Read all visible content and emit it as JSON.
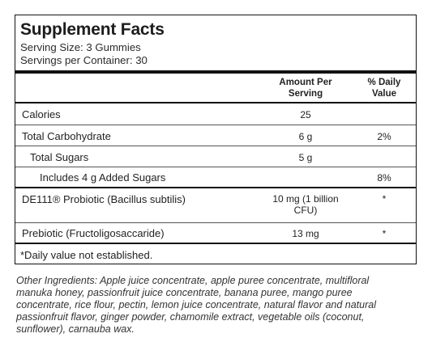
{
  "title": "Supplement Facts",
  "serving_size": "Serving Size: 3 Gummies",
  "servings_per_container": "Servings per Container: 30",
  "header": {
    "amount_line1": "Amount Per",
    "amount_line2": "Serving",
    "dv_line1": "% Daily",
    "dv_line2": "Value"
  },
  "rows": [
    {
      "label": "Calories",
      "amount": "25",
      "dv": ""
    },
    {
      "label": "Total Carbohydrate",
      "amount": "6 g",
      "dv": "2%"
    },
    {
      "label": "Total Sugars",
      "amount": "5 g",
      "dv": ""
    },
    {
      "label": "Includes 4 g Added Sugars",
      "amount": "",
      "dv": "8%"
    },
    {
      "label": "DE111® Probiotic (Bacillus subtilis)",
      "amount_line1": "10 mg (1 billion",
      "amount_line2": "CFU)",
      "dv": "*"
    },
    {
      "label": "Prebiotic (Fructoligosaccaride)",
      "amount": "13 mg",
      "dv": "*"
    }
  ],
  "footnote": "*Daily value not established.",
  "other_ingredients": "Other Ingredients: Apple juice concentrate, apple puree concentrate, multifloral manuka honey, passionfruit juice concentrate, banana puree, mango puree concentrate, rice flour, pectin, lemon juice concentrate, natural flavor and natural passionfruit flavor, ginger powder, chamomile extract, vegetable oils (coconut, sunflower), carnauba wax."
}
